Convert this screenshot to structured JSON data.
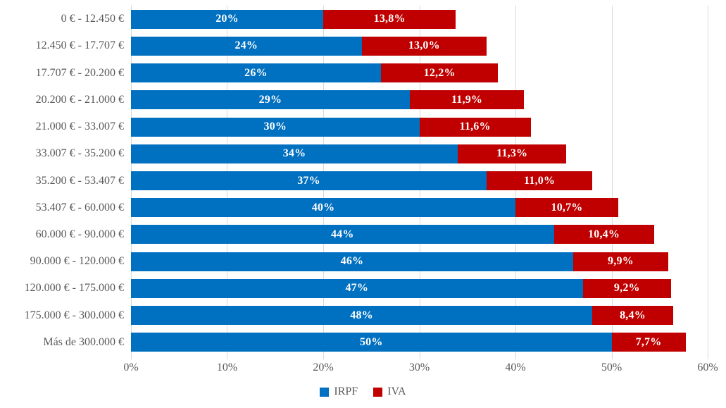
{
  "chart_data": {
    "type": "bar",
    "orientation": "horizontal",
    "stacked": true,
    "title": "",
    "xlabel": "",
    "ylabel": "",
    "categories": [
      "0 € - 12.450 €",
      "12.450 € - 17.707 €",
      "17.707 € - 20.200 €",
      "20.200 € - 21.000 €",
      "21.000 € - 33.007 €",
      "33.007 € - 35.200 €",
      "35.200 € - 53.407 €",
      "53.407 € - 60.000 €",
      "60.000 € - 90.000 €",
      "90.000 € - 120.000 €",
      "120.000 € - 175.000 €",
      "175.000 € - 300.000 €",
      "Más de 300.000 €"
    ],
    "series": [
      {
        "name": "IRPF",
        "color": "#0070C0",
        "values": [
          20,
          24,
          26,
          29,
          30,
          34,
          37,
          40,
          44,
          46,
          47,
          48,
          50
        ],
        "labels": [
          "20%",
          "24%",
          "26%",
          "29%",
          "30%",
          "34%",
          "37%",
          "40%",
          "44%",
          "46%",
          "47%",
          "48%",
          "50%"
        ]
      },
      {
        "name": "IVA",
        "color": "#C00000",
        "values": [
          13.8,
          13.0,
          12.2,
          11.9,
          11.6,
          11.3,
          11.0,
          10.7,
          10.4,
          9.9,
          9.2,
          8.4,
          7.7
        ],
        "labels": [
          "13,8%",
          "13,0%",
          "12,2%",
          "11,9%",
          "11,6%",
          "11,3%",
          "11,0%",
          "10,7%",
          "10,4%",
          "9,9%",
          "9,2%",
          "8,4%",
          "7,7%"
        ]
      }
    ],
    "xlim": [
      0,
      60
    ],
    "x_ticks": [
      "0%",
      "10%",
      "20%",
      "30%",
      "40%",
      "50%",
      "60%"
    ],
    "grid": true,
    "legend_position": "bottom"
  },
  "legend": {
    "items": [
      {
        "label": "IRPF",
        "color": "#0070C0"
      },
      {
        "label": "IVA",
        "color": "#C00000"
      }
    ]
  },
  "colors": {
    "irpf_blue": "#0070C0",
    "iva_red": "#C00000",
    "axis_text": "#595959",
    "gridline": "#D9D9D9",
    "data_label_text": "#FFFFFF",
    "background": "#FFFFFF"
  }
}
